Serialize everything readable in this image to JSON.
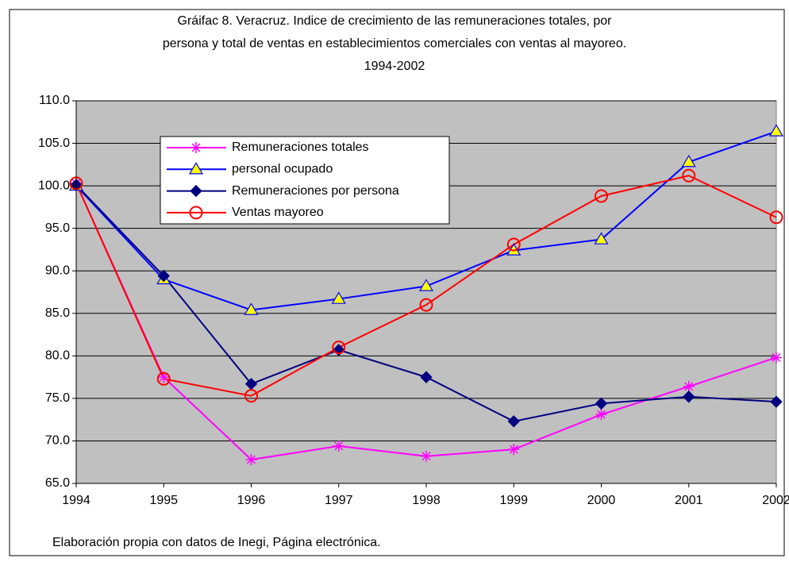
{
  "chart_data": {
    "type": "line",
    "title": [
      "Gráifac 8. Veracruz. Indice de crecimiento de las remuneraciones totales, por",
      "persona y total de ventas en establecimientos comerciales con ventas al mayoreo.",
      "1994-2002"
    ],
    "categories": [
      "1994",
      "1995",
      "1996",
      "1997",
      "1998",
      "1999",
      "2000",
      "2001",
      "2002"
    ],
    "series": [
      {
        "name": "Remuneraciones totales",
        "color": "#ff00ff",
        "marker": "asterisk",
        "values": [
          100.3,
          77.5,
          67.8,
          69.4,
          68.2,
          69.0,
          73.1,
          76.4,
          79.8
        ]
      },
      {
        "name": "personal ocupado",
        "color": "#0000ff",
        "marker": "triangle",
        "marker_fill": "#ffff00",
        "values": [
          100.0,
          89.0,
          85.4,
          86.7,
          88.2,
          92.4,
          93.7,
          102.8,
          106.4
        ]
      },
      {
        "name": "Remuneraciones por persona",
        "color": "#000080",
        "marker": "diamond",
        "marker_fill": "#000080",
        "values": [
          100.1,
          89.4,
          76.7,
          80.7,
          77.5,
          72.3,
          74.4,
          75.2,
          74.6
        ]
      },
      {
        "name": "Ventas mayoreo",
        "color": "#ff0000",
        "marker": "circle",
        "values": [
          100.3,
          77.3,
          75.3,
          81.0,
          86.0,
          93.1,
          98.8,
          101.2,
          96.3
        ]
      }
    ],
    "ylim": [
      65,
      110
    ],
    "yticks": [
      {
        "value": 65,
        "label": "65.0"
      },
      {
        "value": 70,
        "label": "70.0"
      },
      {
        "value": 75,
        "label": "75.0"
      },
      {
        "value": 80,
        "label": "80.0"
      },
      {
        "value": 85,
        "label": "85.0"
      },
      {
        "value": 90,
        "label": "90.0"
      },
      {
        "value": 95,
        "label": "95.0"
      },
      {
        "value": 100,
        "label": "100.0"
      },
      {
        "value": 105,
        "label": "105.0"
      },
      {
        "value": 110,
        "label": "110.0"
      }
    ],
    "grid": true,
    "footnote": "Elaboración propia con datos de Inegi, Página electrónica."
  }
}
